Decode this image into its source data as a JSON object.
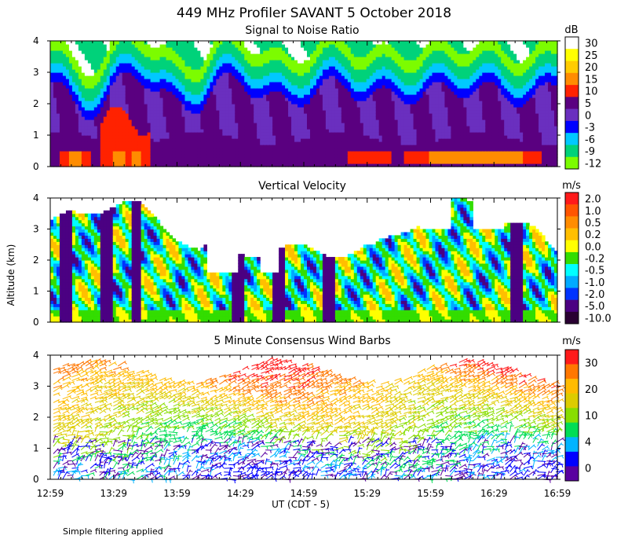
{
  "title": "449 MHz Profiler SAVANT  5 October 2018",
  "ylabel": "Altitude (km)",
  "xlabel": "UT  (CDT - 5)",
  "footnote": "Simple filtering applied",
  "x_ticks": [
    "12:59",
    "13:29",
    "13:59",
    "14:29",
    "14:59",
    "15:29",
    "15:59",
    "16:29",
    "16:59"
  ],
  "chart_data": [
    {
      "type": "heatmap",
      "title": "Signal to Noise Ratio",
      "unit": "dB",
      "x_range": [
        "12:59",
        "16:59"
      ],
      "ylim": [
        0,
        4
      ],
      "y_ticks": [
        0,
        1,
        2,
        3,
        4
      ],
      "colorbar": {
        "labels": [
          "30",
          "25",
          "20",
          "15",
          "10",
          "5",
          "0",
          "-3",
          "-6",
          "-9",
          "-12"
        ],
        "colors": [
          "#ffffff",
          "#ffff00",
          "#ffcc00",
          "#ff8c00",
          "#ff2200",
          "#5a0080",
          "#6a2fbf",
          "#0000ff",
          "#00c8ff",
          "#00d27a",
          "#7cfc00"
        ]
      }
    },
    {
      "type": "heatmap",
      "title": "Vertical Velocity",
      "unit": "m/s",
      "x_range": [
        "12:59",
        "16:59"
      ],
      "ylim": [
        0,
        4
      ],
      "y_ticks": [
        0,
        1,
        2,
        3,
        4
      ],
      "colorbar": {
        "labels": [
          "2.0",
          "1.0",
          "0.5",
          "0.2",
          "0.0",
          "-0.2",
          "-0.5",
          "-1.0",
          "-2.0",
          "-5.0",
          "-10.0"
        ],
        "colors": [
          "#ff1a1a",
          "#ff5500",
          "#ff8c00",
          "#ffbf00",
          "#ffff00",
          "#33dd00",
          "#00ffff",
          "#00aaff",
          "#0033ff",
          "#4b0082",
          "#2a0033"
        ]
      }
    },
    {
      "type": "scatter",
      "title": "5 Minute Consensus Wind Barbs",
      "unit": "m/s",
      "x_range": [
        "12:59",
        "16:59"
      ],
      "ylim": [
        0,
        4
      ],
      "y_ticks": [
        0,
        1,
        2,
        3,
        4
      ],
      "colorbar": {
        "labels": [
          "30",
          "20",
          "10",
          "4",
          "0"
        ],
        "colors": [
          "#ff1a1a",
          "#ff7700",
          "#ffbb00",
          "#ddcc00",
          "#88dd00",
          "#00dd55",
          "#00b4ff",
          "#0000ff",
          "#5a00a0"
        ]
      }
    }
  ]
}
